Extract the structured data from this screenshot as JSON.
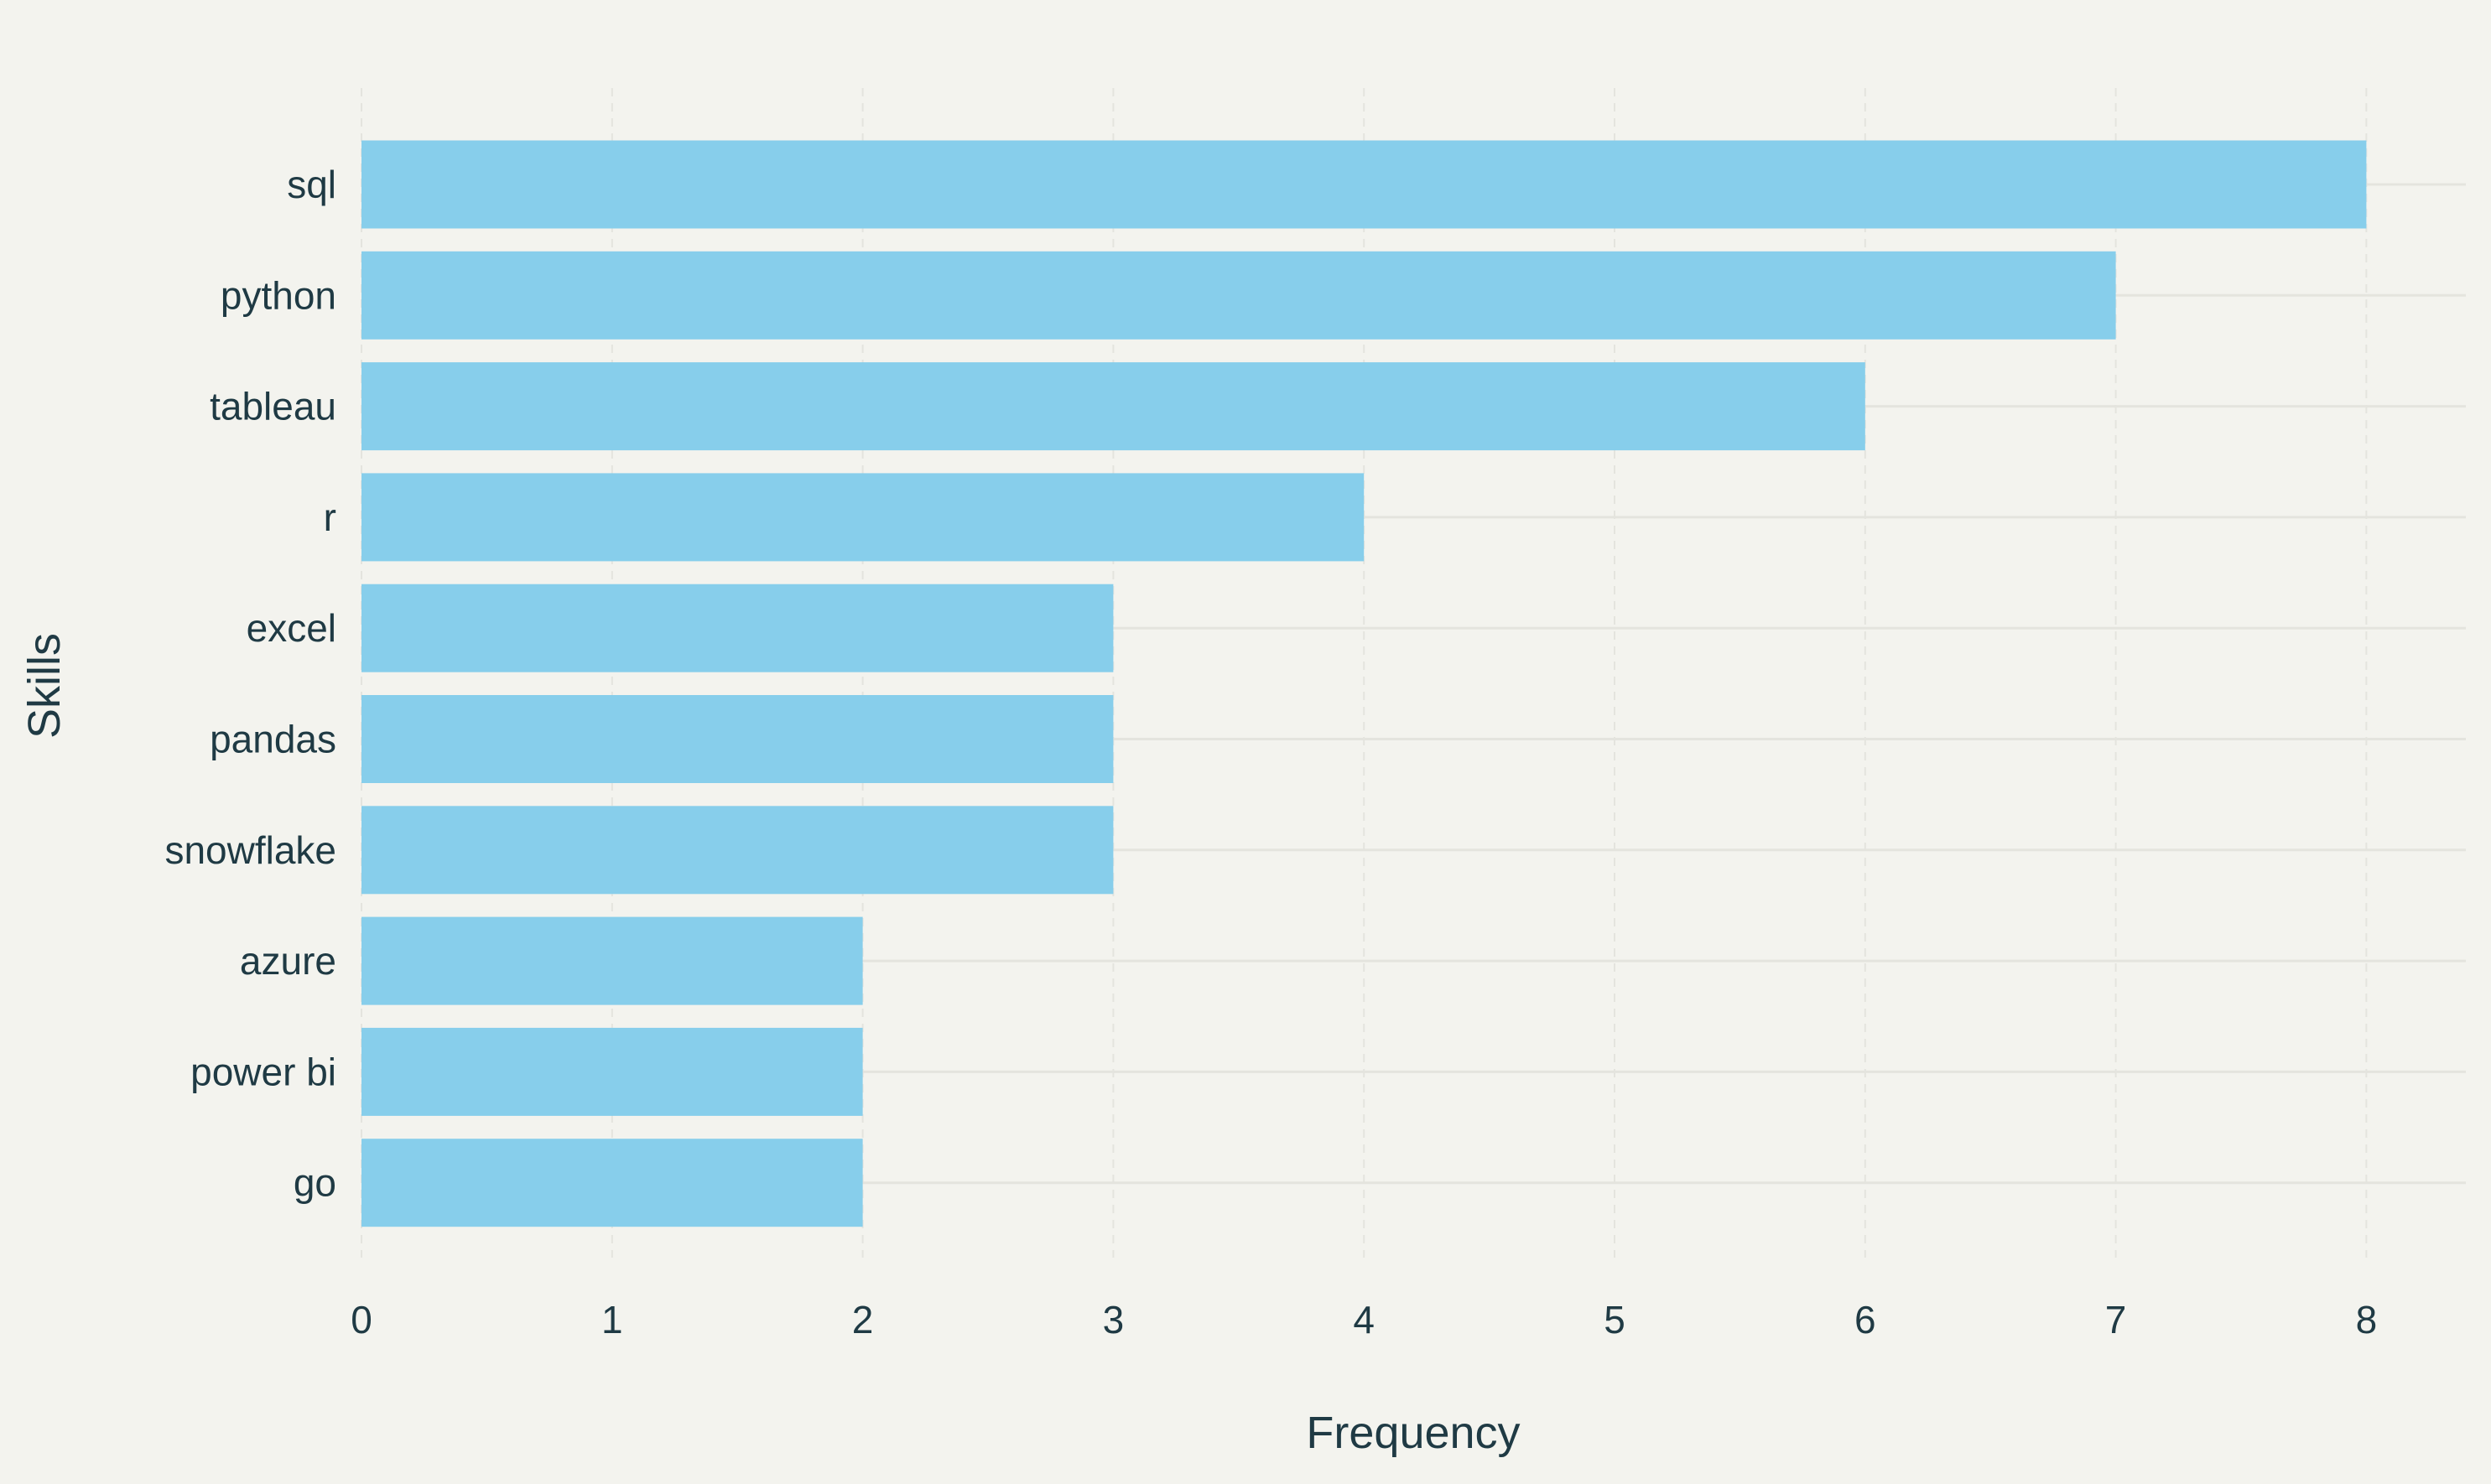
{
  "chart_data": {
    "type": "bar",
    "orientation": "horizontal",
    "categories": [
      "sql",
      "python",
      "tableau",
      "r",
      "excel",
      "pandas",
      "snowflake",
      "azure",
      "power bi",
      "go"
    ],
    "values": [
      8,
      7,
      6,
      4,
      3,
      3,
      3,
      2,
      2,
      2
    ],
    "xlabel": "Frequency",
    "ylabel": "Skills",
    "xlim": [
      0,
      8.4
    ],
    "x_ticks": [
      0,
      1,
      2,
      3,
      4,
      5,
      6,
      7,
      8
    ],
    "grid": true,
    "legend": "none",
    "colors": {
      "background": "#f3f3ee",
      "bar": "#87ceeb",
      "text": "#1f3a44",
      "grid": "#e4e4de"
    }
  }
}
